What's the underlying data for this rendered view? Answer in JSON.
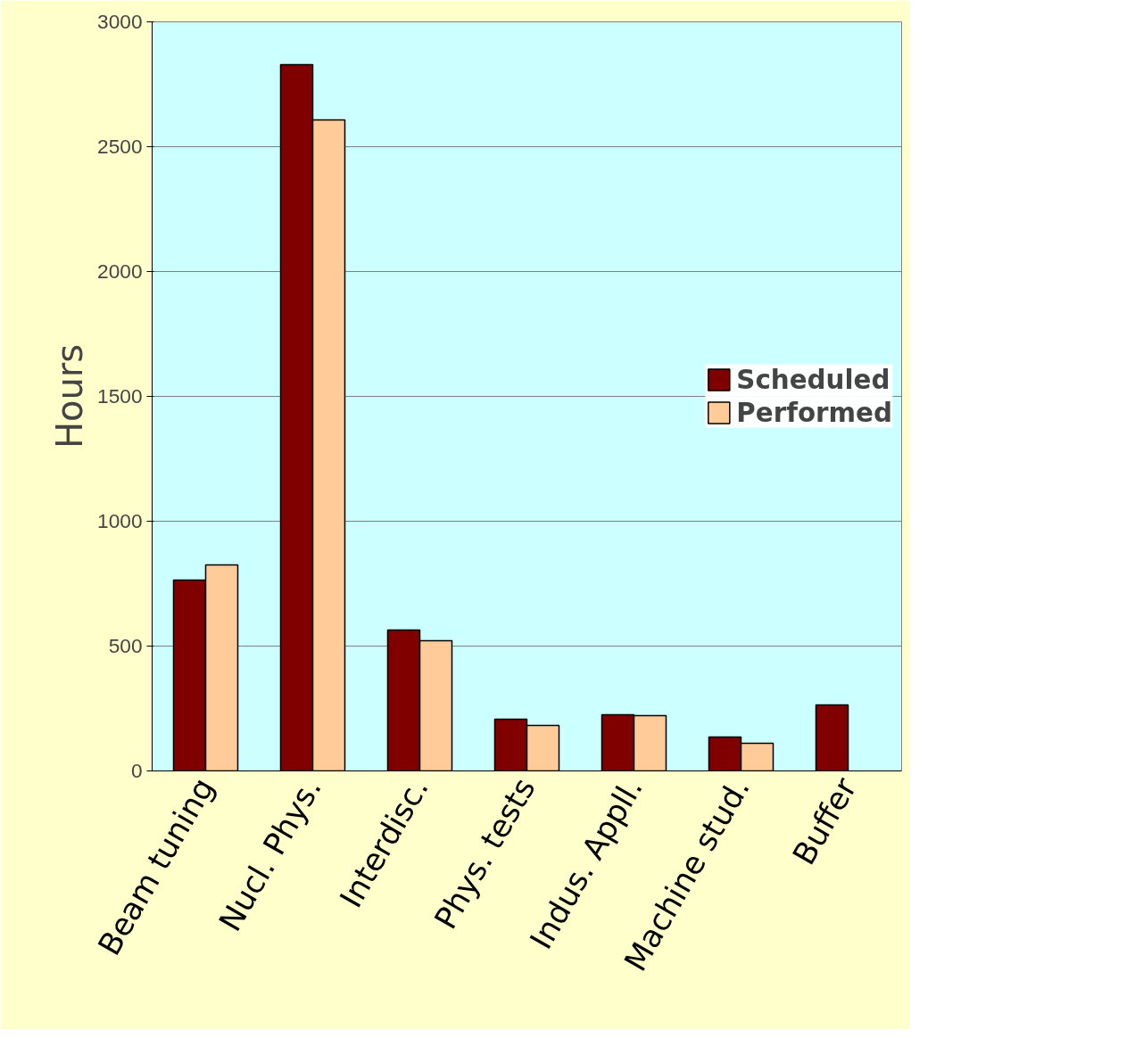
{
  "chart_data": {
    "type": "bar",
    "ylabel": "Hours",
    "categories": [
      "Beam tuning",
      "Nucl. Phys.",
      "Interdisc.",
      "Phys. tests",
      "Indus. Appll.",
      "Machine stud.",
      "Buffer"
    ],
    "series": [
      {
        "name": "Scheduled",
        "color": "#800000",
        "values": [
          764,
          2829,
          564,
          207,
          225,
          136,
          264
        ]
      },
      {
        "name": "Performed",
        "color": "#ffcc99",
        "values": [
          825,
          2607,
          521,
          182,
          221,
          111,
          null
        ]
      }
    ],
    "ylim": [
      0,
      3000
    ],
    "yticks": [
      0,
      500,
      1000,
      1500,
      2000,
      2500,
      3000
    ],
    "grid": "y",
    "legend": "right"
  }
}
